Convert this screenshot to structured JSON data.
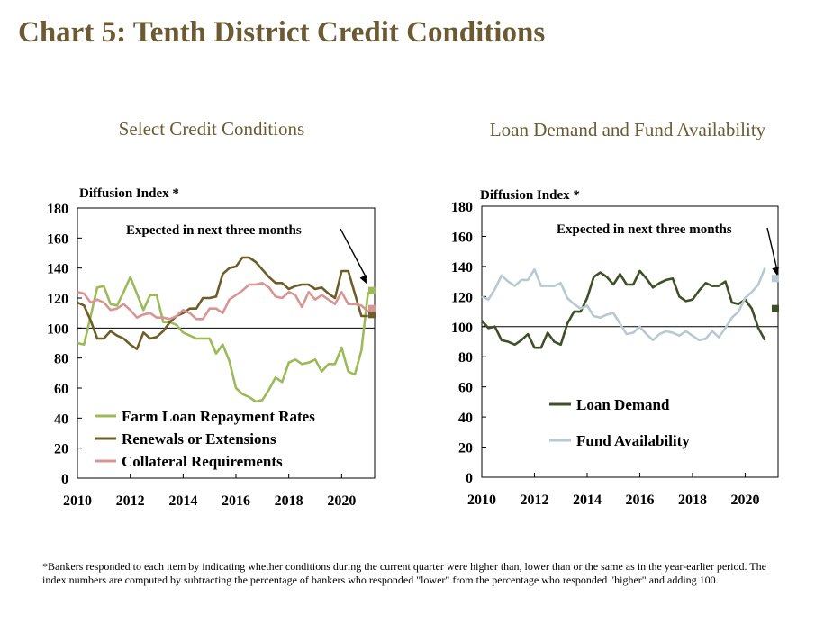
{
  "title": "Chart 5: Tenth District Credit Conditions",
  "footnote": "*Bankers responded to each item by indicating  whether conditions  during  the current quarter were higher than, lower than or the same as in the year-earlier period.  The index numbers are computed by subtracting the percentage of bankers who responded \"lower\"  from the percentage who responded \"higher\"  and adding 100.",
  "chart_data": [
    {
      "type": "line",
      "title": "Select Credit Conditions",
      "ylabel": "Diffusion  Index  *",
      "ylim": [
        0,
        180
      ],
      "yticks": [
        0,
        20,
        40,
        60,
        80,
        100,
        120,
        140,
        160,
        180
      ],
      "xlim": [
        2010,
        2021.25
      ],
      "xticks": [
        2010,
        2012,
        2014,
        2016,
        2018,
        2020
      ],
      "annotation": "Expected in next three months",
      "legend_position": "bottom-left",
      "series": [
        {
          "name": "Farm Loan Repayment Rates",
          "color": "#9bbb59",
          "x": [
            2010.0,
            2010.25,
            2010.5,
            2010.75,
            2011.0,
            2011.25,
            2011.5,
            2011.75,
            2012.0,
            2012.25,
            2012.5,
            2012.75,
            2013.0,
            2013.25,
            2013.5,
            2013.75,
            2014.0,
            2014.25,
            2014.5,
            2014.75,
            2015.0,
            2015.25,
            2015.5,
            2015.75,
            2016.0,
            2016.25,
            2016.5,
            2016.75,
            2017.0,
            2017.25,
            2017.5,
            2017.75,
            2018.0,
            2018.25,
            2018.5,
            2018.75,
            2019.0,
            2019.25,
            2019.5,
            2019.75,
            2020.0,
            2020.25,
            2020.5,
            2020.75,
            2021.0
          ],
          "values": [
            90,
            89,
            108,
            127,
            128,
            116,
            115,
            124,
            134,
            123,
            112,
            122,
            122,
            104,
            104,
            102,
            97,
            95,
            93,
            93,
            93,
            83,
            89,
            78,
            60,
            56,
            54,
            51,
            52,
            59,
            67,
            64,
            77,
            79,
            76,
            77,
            79,
            71,
            76,
            76,
            87,
            71,
            69,
            85,
            124
          ],
          "expected": 125
        },
        {
          "name": "Renewals or Extensions",
          "color": "#6e5d28",
          "x": [
            2010.0,
            2010.25,
            2010.5,
            2010.75,
            2011.0,
            2011.25,
            2011.5,
            2011.75,
            2012.0,
            2012.25,
            2012.5,
            2012.75,
            2013.0,
            2013.25,
            2013.5,
            2013.75,
            2014.0,
            2014.25,
            2014.5,
            2014.75,
            2015.0,
            2015.25,
            2015.5,
            2015.75,
            2016.0,
            2016.25,
            2016.5,
            2016.75,
            2017.0,
            2017.25,
            2017.5,
            2017.75,
            2018.0,
            2018.25,
            2018.5,
            2018.75,
            2019.0,
            2019.25,
            2019.5,
            2019.75,
            2020.0,
            2020.25,
            2020.5,
            2020.75,
            2021.0
          ],
          "values": [
            117,
            115,
            105,
            93,
            93,
            98,
            95,
            93,
            89,
            86,
            97,
            93,
            94,
            98,
            104,
            108,
            110,
            113,
            113,
            120,
            120,
            121,
            136,
            140,
            141,
            147,
            147,
            144,
            139,
            134,
            130,
            130,
            126,
            128,
            129,
            129,
            126,
            127,
            123,
            120,
            138,
            138,
            123,
            108,
            108
          ],
          "expected": 109
        },
        {
          "name": "Collateral Requirements",
          "color": "#d99594",
          "x": [
            2010.0,
            2010.25,
            2010.5,
            2010.75,
            2011.0,
            2011.25,
            2011.5,
            2011.75,
            2012.0,
            2012.25,
            2012.5,
            2012.75,
            2013.0,
            2013.25,
            2013.5,
            2013.75,
            2014.0,
            2014.25,
            2014.5,
            2014.75,
            2015.0,
            2015.25,
            2015.5,
            2015.75,
            2016.0,
            2016.25,
            2016.5,
            2016.75,
            2017.0,
            2017.25,
            2017.5,
            2017.75,
            2018.0,
            2018.25,
            2018.5,
            2018.75,
            2019.0,
            2019.25,
            2019.5,
            2019.75,
            2020.0,
            2020.25,
            2020.5,
            2020.75,
            2021.0
          ],
          "values": [
            124,
            123,
            117,
            119,
            117,
            112,
            113,
            116,
            112,
            107,
            109,
            110,
            107,
            107,
            106,
            108,
            112,
            110,
            106,
            106,
            113,
            113,
            110,
            119,
            122,
            125,
            129,
            129,
            130,
            127,
            121,
            120,
            124,
            122,
            114,
            124,
            119,
            122,
            119,
            116,
            124,
            116,
            116,
            115,
            111
          ],
          "expected": 113
        }
      ]
    },
    {
      "type": "line",
      "title": "Loan Demand and Fund Availability",
      "ylabel": "Diffusion  Index  *",
      "ylim": [
        0,
        180
      ],
      "yticks": [
        0,
        20,
        40,
        60,
        80,
        100,
        120,
        140,
        160,
        180
      ],
      "xlim": [
        2010,
        2021.25
      ],
      "xticks": [
        2010,
        2012,
        2014,
        2016,
        2018,
        2020
      ],
      "annotation": "Expected in next three months",
      "legend_position": "center-left",
      "series": [
        {
          "name": "Loan Demand",
          "color": "#3d5028",
          "x": [
            2010.0,
            2010.25,
            2010.5,
            2010.75,
            2011.0,
            2011.25,
            2011.5,
            2011.75,
            2012.0,
            2012.25,
            2012.5,
            2012.75,
            2013.0,
            2013.25,
            2013.5,
            2013.75,
            2014.0,
            2014.25,
            2014.5,
            2014.75,
            2015.0,
            2015.25,
            2015.5,
            2015.75,
            2016.0,
            2016.25,
            2016.5,
            2016.75,
            2017.0,
            2017.25,
            2017.5,
            2017.75,
            2018.0,
            2018.25,
            2018.5,
            2018.75,
            2019.0,
            2019.25,
            2019.5,
            2019.75,
            2020.0,
            2020.25,
            2020.5,
            2020.75
          ],
          "values": [
            104,
            99,
            100,
            91,
            90,
            88,
            91,
            95,
            86,
            86,
            96,
            90,
            88,
            102,
            110,
            110,
            119,
            133,
            136,
            133,
            128,
            135,
            128,
            128,
            137,
            132,
            126,
            129,
            131,
            132,
            120,
            117,
            118,
            124,
            129,
            127,
            127,
            130,
            116,
            115,
            118,
            112,
            99,
            91
          ],
          "expected": 112
        },
        {
          "name": "Fund Availability",
          "color": "#b7c9d3",
          "x": [
            2010.0,
            2010.25,
            2010.5,
            2010.75,
            2011.0,
            2011.25,
            2011.5,
            2011.75,
            2012.0,
            2012.25,
            2012.5,
            2012.75,
            2013.0,
            2013.25,
            2013.5,
            2013.75,
            2014.0,
            2014.25,
            2014.5,
            2014.75,
            2015.0,
            2015.25,
            2015.5,
            2015.75,
            2016.0,
            2016.25,
            2016.5,
            2016.75,
            2017.0,
            2017.25,
            2017.5,
            2017.75,
            2018.0,
            2018.25,
            2018.5,
            2018.75,
            2019.0,
            2019.25,
            2019.5,
            2019.75,
            2020.0,
            2020.25,
            2020.5,
            2020.75
          ],
          "values": [
            120,
            118,
            125,
            134,
            130,
            127,
            131,
            131,
            138,
            127,
            127,
            127,
            129,
            119,
            115,
            112,
            114,
            107,
            106,
            108,
            109,
            102,
            95,
            96,
            100,
            95,
            91,
            95,
            97,
            96,
            94,
            97,
            94,
            91,
            92,
            97,
            93,
            99,
            106,
            110,
            119,
            123,
            128,
            139
          ],
          "expected": 132
        }
      ]
    }
  ]
}
